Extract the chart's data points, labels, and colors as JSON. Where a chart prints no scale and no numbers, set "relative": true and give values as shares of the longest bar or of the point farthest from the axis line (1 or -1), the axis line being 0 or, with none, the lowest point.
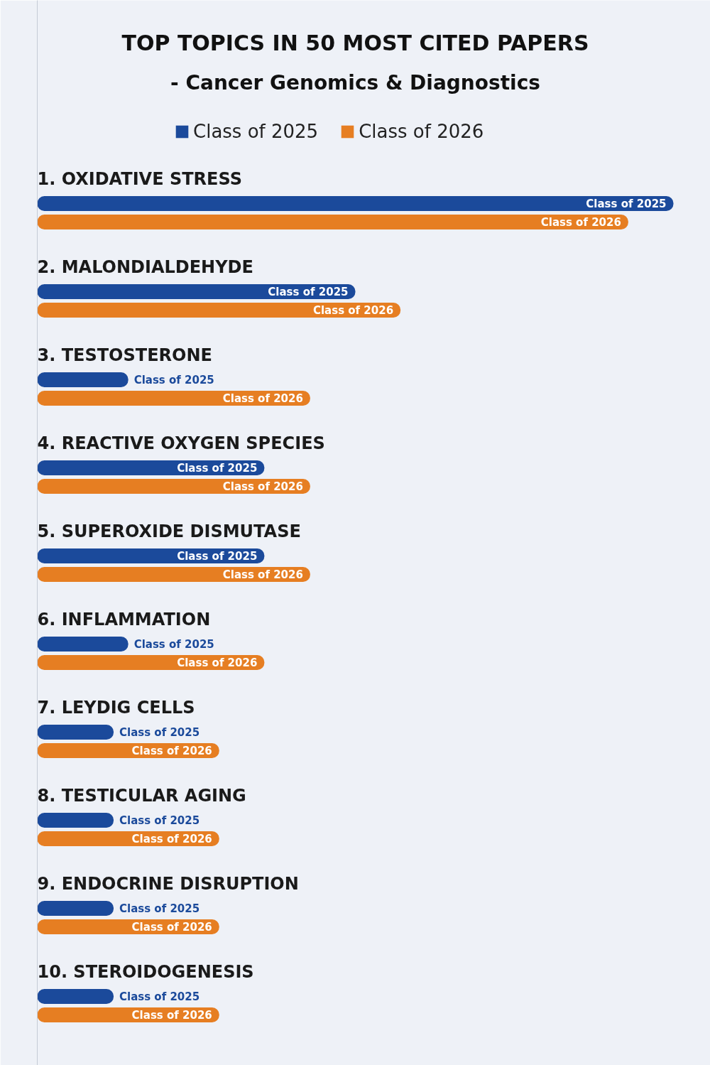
{
  "chart_data": {
    "type": "bar",
    "orientation": "horizontal",
    "relative": true,
    "title": "TOP TOPICS IN 50 MOST CITED PAPERS",
    "subtitle": "- Cancer Genomics & Diagnostics",
    "categories": [
      "1. OXIDATIVE STRESS",
      "2. MALONDIALDEHYDE",
      "3. TESTOSTERONE",
      "4. REACTIVE OXYGEN SPECIES",
      "5. SUPEROXIDE DISMUTASE",
      "6. INFLAMMATION",
      "7. LEYDIG CELLS",
      "8. TESTICULAR AGING",
      "9. ENDOCRINE DISRUPTION",
      "10. STEROIDOGENESIS"
    ],
    "series": [
      {
        "name": "Class of 2025",
        "color": "#1b4a9b",
        "values": [
          1.0,
          0.5,
          0.143,
          0.357,
          0.357,
          0.143,
          0.12,
          0.12,
          0.12,
          0.12
        ]
      },
      {
        "name": "Class of 2026",
        "color": "#e67e22",
        "values": [
          0.929,
          0.571,
          0.429,
          0.429,
          0.429,
          0.357,
          0.286,
          0.286,
          0.286,
          0.286
        ]
      }
    ],
    "legend": "top",
    "grid": false
  }
}
